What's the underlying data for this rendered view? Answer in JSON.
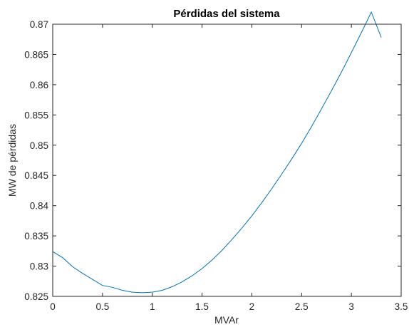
{
  "chart_data": {
    "type": "line",
    "title": "Pérdidas del sistema",
    "xlabel": "MVAr",
    "ylabel": "MW de pérdidas",
    "xlim": [
      0,
      3.5
    ],
    "ylim": [
      0.825,
      0.87
    ],
    "xticks": [
      "0",
      "0.5",
      "1",
      "1.5",
      "2",
      "2.5",
      "3",
      "3.5"
    ],
    "yticks": [
      "0.825",
      "0.83",
      "0.835",
      "0.84",
      "0.845",
      "0.85",
      "0.855",
      "0.86",
      "0.865",
      "0.87"
    ],
    "grid": false,
    "series": [
      {
        "color": "#0072BD",
        "x": [
          0,
          0.1,
          0.2,
          0.3,
          0.4,
          0.5,
          0.6,
          0.7,
          0.8,
          0.9,
          1.0,
          1.1,
          1.2,
          1.3,
          1.4,
          1.5,
          1.6,
          1.7,
          1.8,
          1.9,
          2.0,
          2.1,
          2.2,
          2.3,
          2.4,
          2.5,
          2.6,
          2.7,
          2.8,
          2.9,
          3.0,
          3.1,
          3.2,
          3.3
        ],
        "y": [
          0.8324,
          0.8314,
          0.8299,
          0.8288,
          0.8278,
          0.8268,
          0.8265,
          0.826,
          0.8257,
          0.8256,
          0.8257,
          0.826,
          0.8266,
          0.8274,
          0.8284,
          0.8296,
          0.831,
          0.8326,
          0.8344,
          0.8363,
          0.8383,
          0.8405,
          0.8428,
          0.8452,
          0.8477,
          0.8503,
          0.8531,
          0.856,
          0.859,
          0.8621,
          0.8653,
          0.8686,
          0.872,
          0.8678
        ]
      }
    ]
  }
}
